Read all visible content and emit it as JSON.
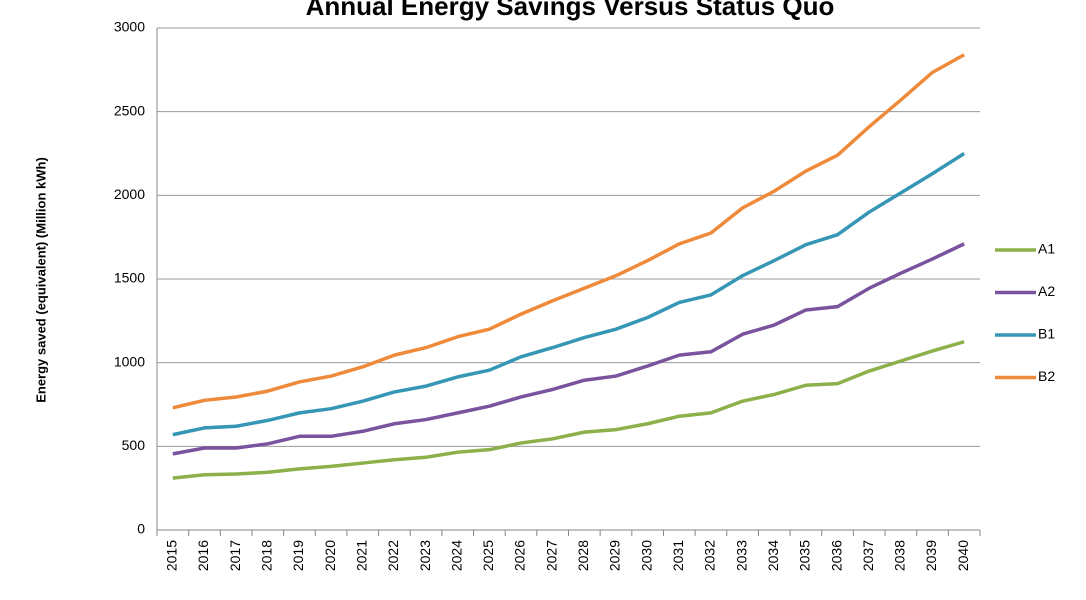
{
  "chart_data": {
    "type": "line",
    "title": "Annual Energy Savings Versus Status Quo",
    "y_label": "Energy saved (equivalent) (Million kWh)",
    "categories": [
      "2015",
      "2016",
      "2017",
      "2018",
      "2019",
      "2020",
      "2021",
      "2022",
      "2023",
      "2024",
      "2025",
      "2026",
      "2027",
      "2028",
      "2029",
      "2030",
      "2031",
      "2032",
      "2033",
      "2034",
      "2035",
      "2036",
      "2037",
      "2038",
      "2039",
      "2040"
    ],
    "series": [
      {
        "name": "A1",
        "color": "#8db04a",
        "values": [
          310,
          330,
          335,
          345,
          365,
          380,
          400,
          420,
          435,
          465,
          480,
          520,
          545,
          585,
          600,
          635,
          680,
          700,
          770,
          810,
          865,
          875,
          950,
          1010,
          1070,
          1125
        ]
      },
      {
        "name": "A2",
        "color": "#7a539e",
        "values": [
          455,
          490,
          490,
          515,
          560,
          560,
          590,
          635,
          660,
          700,
          740,
          795,
          840,
          895,
          920,
          980,
          1045,
          1065,
          1170,
          1225,
          1315,
          1335,
          1445,
          1535,
          1620,
          1710
        ]
      },
      {
        "name": "B1",
        "color": "#3597b5",
        "values": [
          570,
          610,
          620,
          655,
          700,
          725,
          770,
          825,
          860,
          915,
          955,
          1035,
          1090,
          1150,
          1200,
          1270,
          1360,
          1405,
          1520,
          1610,
          1705,
          1765,
          1900,
          2015,
          2130,
          2250
        ]
      },
      {
        "name": "B2",
        "color": "#ee8a3a",
        "values": [
          730,
          775,
          795,
          830,
          885,
          920,
          975,
          1045,
          1090,
          1155,
          1200,
          1290,
          1370,
          1445,
          1520,
          1610,
          1710,
          1775,
          1925,
          2025,
          2145,
          2240,
          2410,
          2570,
          2735,
          2840
        ]
      }
    ],
    "ylim": [
      0,
      3000
    ],
    "yticks": [
      0,
      500,
      1000,
      1500,
      2000,
      2500,
      3000
    ],
    "grid": true,
    "legend": "right"
  }
}
